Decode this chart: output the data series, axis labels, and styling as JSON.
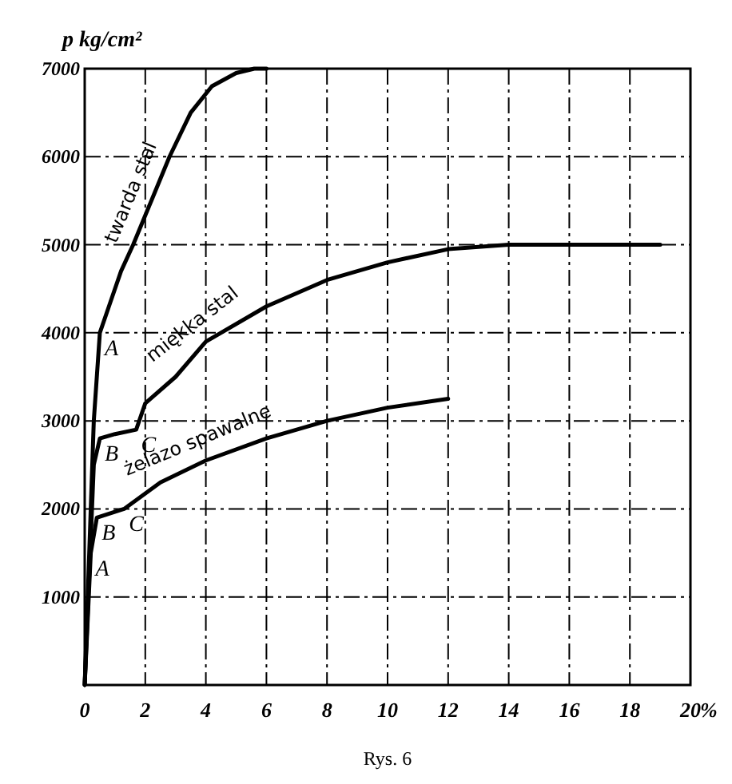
{
  "chart_data": {
    "type": "line",
    "ylabel": "p kg/cm²",
    "xlabel": "%",
    "xlim": [
      0,
      20
    ],
    "xticks": [
      0,
      2,
      4,
      6,
      8,
      10,
      12,
      14,
      16,
      18,
      20
    ],
    "ylim": [
      0,
      7000
    ],
    "yticks": [
      1000,
      2000,
      3000,
      4000,
      5000,
      6000,
      7000
    ],
    "grid": true,
    "line_style": "solid",
    "marker": "none",
    "series": [
      {
        "name": "twarda stal",
        "color": "#000000",
        "x": [
          0,
          0.3,
          0.5,
          0.8,
          1.2,
          1.6,
          2.2,
          2.8,
          3.5,
          4.2,
          5,
          5.6,
          6
        ],
        "values": [
          0,
          3000,
          4000,
          4300,
          4700,
          5000,
          5500,
          6000,
          6500,
          6800,
          6950,
          7000,
          7000
        ]
      },
      {
        "name": "miękka stal",
        "color": "#000000",
        "x": [
          0,
          0.3,
          0.5,
          1,
          1.7,
          2,
          3,
          4,
          6,
          8,
          10,
          12,
          14,
          19
        ],
        "values": [
          0,
          2500,
          2800,
          2850,
          2900,
          3200,
          3500,
          3900,
          4300,
          4600,
          4800,
          4950,
          5000,
          5000
        ]
      },
      {
        "name": "żelazo spawalne",
        "color": "#000000",
        "x": [
          0,
          0.2,
          0.4,
          1.3,
          2.5,
          4,
          6,
          8,
          10,
          12
        ],
        "values": [
          0,
          1500,
          1900,
          2000,
          2300,
          2550,
          2800,
          3000,
          3150,
          3250
        ]
      }
    ],
    "annotations": [
      {
        "text": "A",
        "x": 0.5,
        "y": 4000
      },
      {
        "text": "B",
        "x": 0.5,
        "y": 2800
      },
      {
        "text": "C",
        "x": 1.7,
        "y": 2900
      },
      {
        "text": "B",
        "x": 0.4,
        "y": 1900
      },
      {
        "text": "A",
        "x": 0.2,
        "y": 1500
      },
      {
        "text": "C",
        "x": 1.3,
        "y": 2000
      },
      "Rys. 6"
    ]
  }
}
